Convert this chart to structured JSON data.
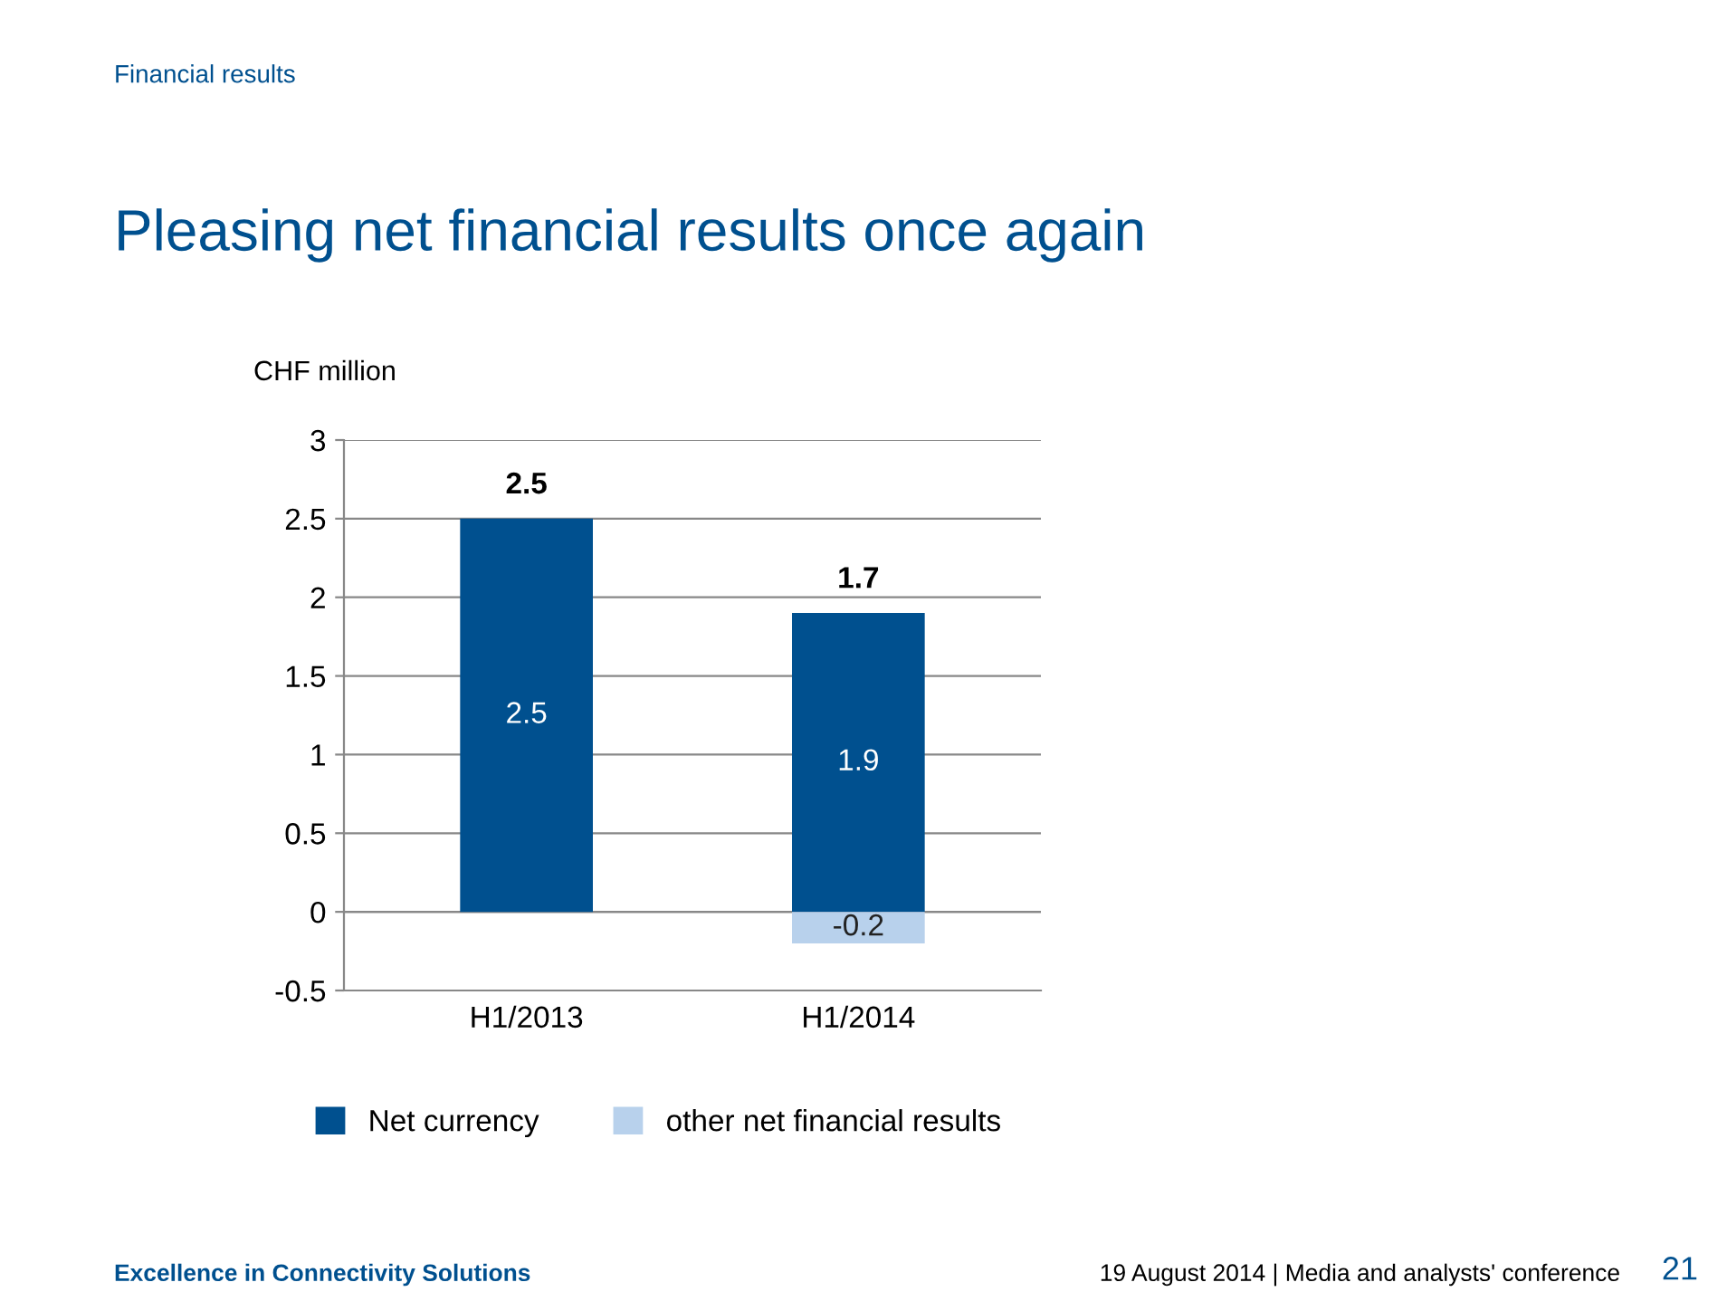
{
  "chart_data": {
    "type": "bar",
    "title": "Pleasing net financial results once again",
    "ylabel": "CHF million",
    "categories": [
      "H1/2013",
      "H1/2014"
    ],
    "series": [
      {
        "name": "Net currency",
        "color": "#00508f",
        "values": [
          2.5,
          1.9
        ]
      },
      {
        "name": "other net financial results",
        "color": "#b8d1ec",
        "values": [
          null,
          -0.2
        ]
      }
    ],
    "stacked": true,
    "data_labels": true,
    "totals": [
      "2.5",
      "1.7"
    ],
    "ylim": [
      -0.5,
      3
    ],
    "yticks": [
      -0.5,
      0,
      0.5,
      1,
      1.5,
      2,
      2.5,
      3
    ],
    "grid": "y",
    "legend": "bottom",
    "annotations": [
      "Financial results",
      "Excellence in Connectivity Solutions",
      "19 August 2014 | Media and analysts' conference",
      "21"
    ]
  }
}
